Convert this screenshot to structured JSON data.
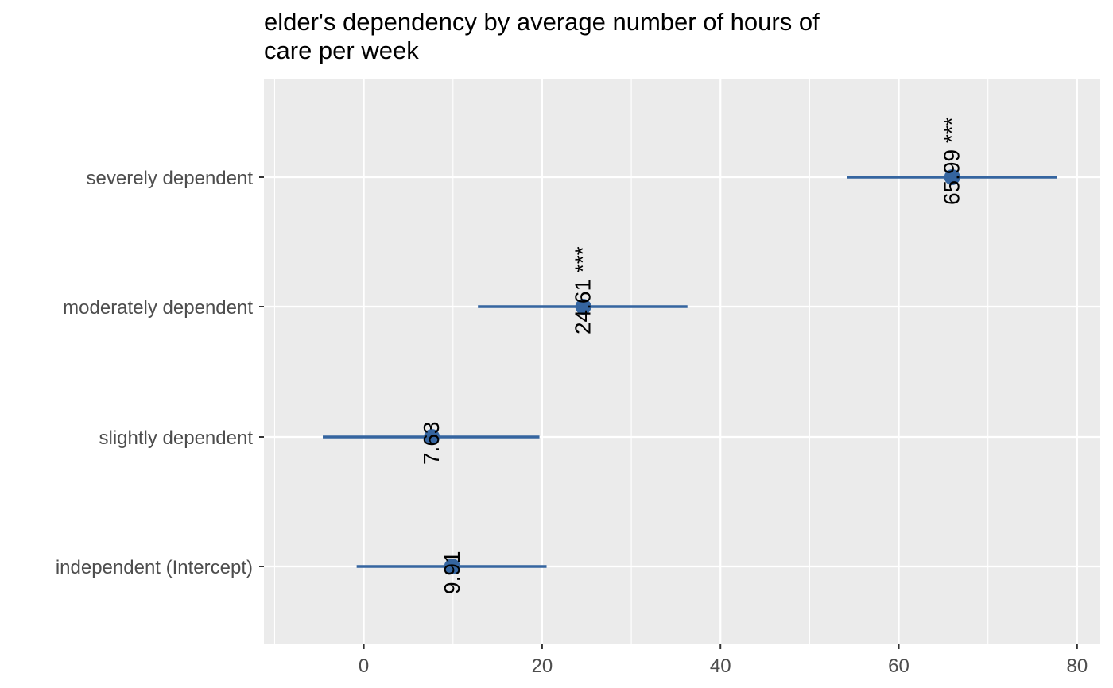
{
  "chart_data": {
    "type": "forest",
    "title_lines": [
      "elder's dependency by average number of hours of",
      "care per week"
    ],
    "xlabel": "",
    "ylabel": "",
    "xlim": [
      -11.2,
      82.6
    ],
    "x_ticks": [
      0,
      20,
      40,
      60,
      80
    ],
    "x_minor_gridlines": [
      -10,
      10,
      30,
      50,
      70
    ],
    "grid": true,
    "categories": [
      "severely dependent",
      "moderately dependent",
      "slightly dependent",
      "independent (Intercept)"
    ],
    "estimates": [
      65.99,
      24.61,
      7.63,
      9.91
    ],
    "ci_low": [
      54.2,
      12.8,
      -4.6,
      -0.8
    ],
    "ci_high": [
      77.7,
      36.3,
      19.7,
      20.5
    ],
    "labels": [
      "65.99 ***",
      "24.61 ***",
      "7.63",
      "9.91"
    ],
    "point_color": "#3565a0",
    "panel_background": "#ebebeb",
    "grid_color": "#ffffff"
  }
}
